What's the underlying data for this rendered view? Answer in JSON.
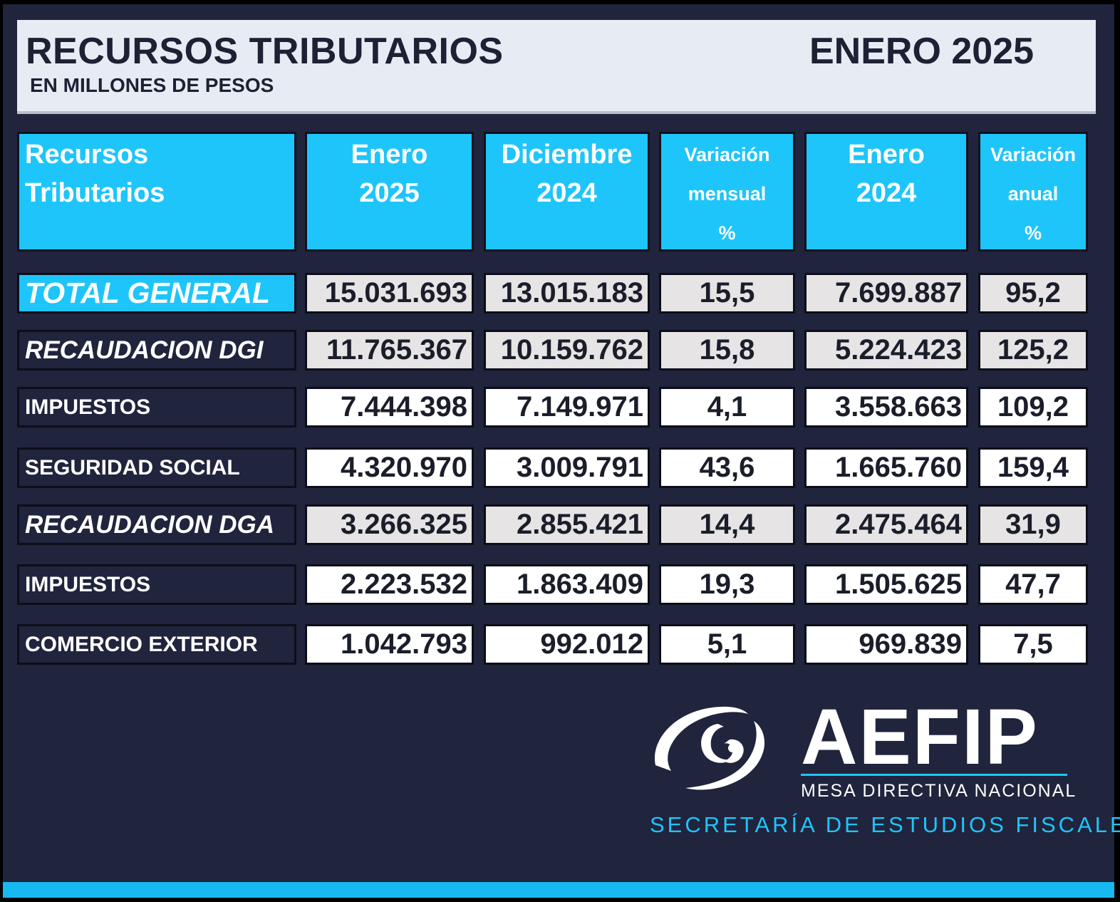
{
  "header": {
    "title": "RECURSOS TRIBUTARIOS",
    "subtitle": "EN MILLONES DE PESOS",
    "period": "ENERO 2025"
  },
  "columns": {
    "c0": [
      "Recursos",
      "Tributarios"
    ],
    "c1": [
      "Enero",
      "2025"
    ],
    "c2": [
      "Diciembre",
      "2024"
    ],
    "c3": [
      "Variación",
      "mensual",
      "%"
    ],
    "c4": [
      "Enero",
      "2024"
    ],
    "c5": [
      "Variación",
      "anual",
      "%"
    ]
  },
  "rows": [
    {
      "label": "TOTAL GENERAL",
      "ene2025": "15.031.693",
      "dic2024": "13.015.183",
      "var_mensual": "15,5",
      "ene2024": "7.699.887",
      "var_anual": "95,2"
    },
    {
      "label": "RECAUDACION DGI",
      "ene2025": "11.765.367",
      "dic2024": "10.159.762",
      "var_mensual": "15,8",
      "ene2024": "5.224.423",
      "var_anual": "125,2"
    },
    {
      "label": "IMPUESTOS",
      "ene2025": "7.444.398",
      "dic2024": "7.149.971",
      "var_mensual": "4,1",
      "ene2024": "3.558.663",
      "var_anual": "109,2"
    },
    {
      "label": "SEGURIDAD SOCIAL",
      "ene2025": "4.320.970",
      "dic2024": "3.009.791",
      "var_mensual": "43,6",
      "ene2024": "1.665.760",
      "var_anual": "159,4"
    },
    {
      "label": "RECAUDACION DGA",
      "ene2025": "3.266.325",
      "dic2024": "2.855.421",
      "var_mensual": "14,4",
      "ene2024": "2.475.464",
      "var_anual": "31,9"
    },
    {
      "label": "IMPUESTOS",
      "ene2025": "2.223.532",
      "dic2024": "1.863.409",
      "var_mensual": "19,3",
      "ene2024": "1.505.625",
      "var_anual": "47,7"
    },
    {
      "label": "COMERCIO EXTERIOR",
      "ene2025": "1.042.793",
      "dic2024": "992.012",
      "var_mensual": "5,1",
      "ene2024": "969.839",
      "var_anual": "7,5"
    }
  ],
  "logo": {
    "name": "AEFIP",
    "subtitle": "MESA DIRECTIVA NACIONAL",
    "secretaria": "SECRETARÍA DE ESTUDIOS FISCALES",
    "icon": "eye-swirl-icon"
  },
  "colors": {
    "background": "#20243d",
    "accent": "#1ec5fb",
    "header_bg": "#e7ecf4",
    "grey_cell": "#e6e4e4"
  }
}
